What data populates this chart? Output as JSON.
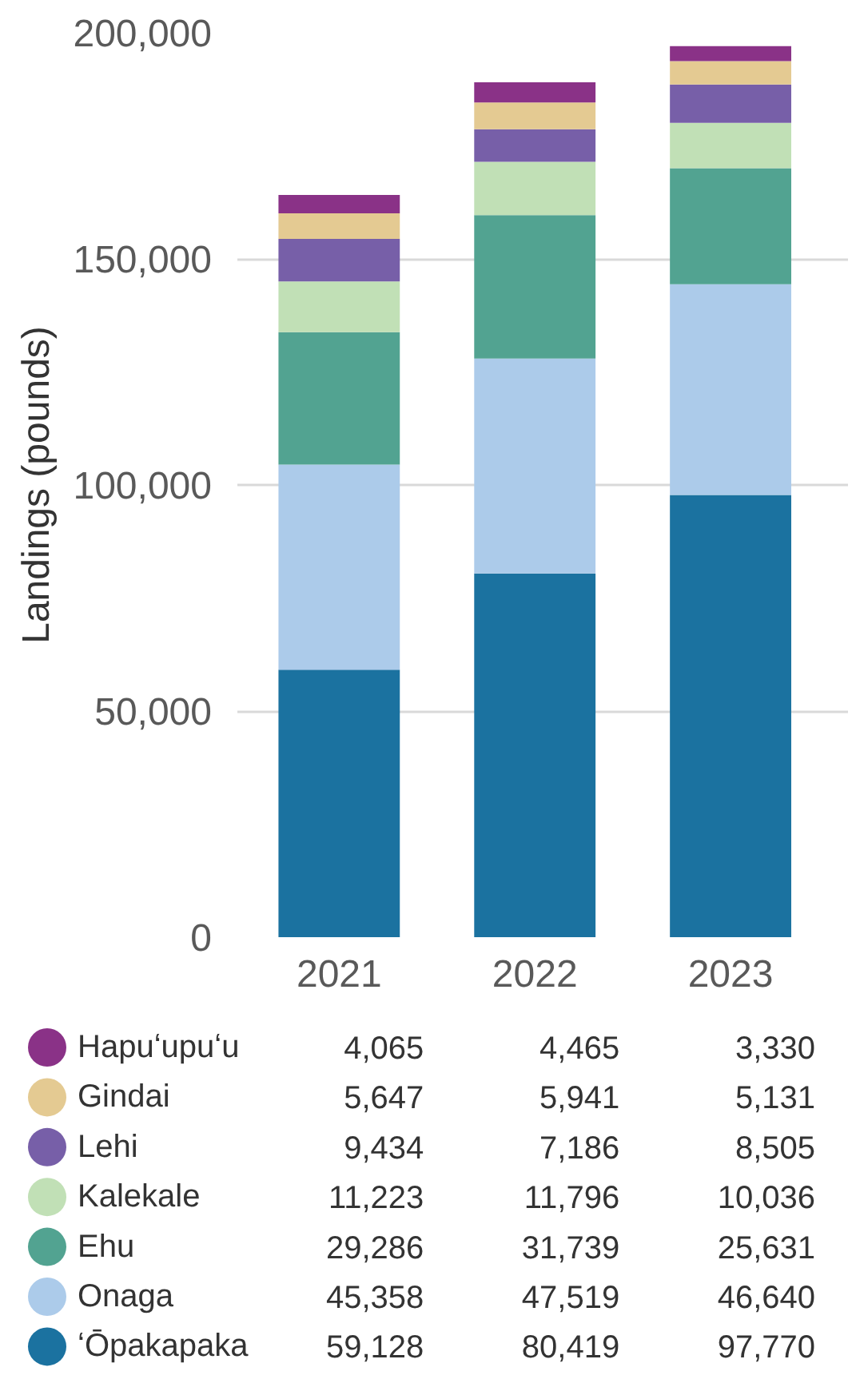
{
  "chart_data": {
    "type": "bar",
    "stacked": true,
    "ylabel": "Landings (pounds)",
    "categories": [
      "2021",
      "2022",
      "2023"
    ],
    "series": [
      {
        "name": "ʻŌpakapaka",
        "color": "#1b72a0",
        "values": [
          59128,
          80419,
          97770
        ],
        "value_labels": [
          "59,128",
          "80,419",
          "97,770"
        ]
      },
      {
        "name": "Onaga",
        "color": "#accbea",
        "values": [
          45358,
          47519,
          46640
        ],
        "value_labels": [
          "45,358",
          "47,519",
          "46,640"
        ]
      },
      {
        "name": "Ehu",
        "color": "#52a391",
        "values": [
          29286,
          31739,
          25631
        ],
        "value_labels": [
          "29,286",
          "31,739",
          "25,631"
        ]
      },
      {
        "name": "Kalekale",
        "color": "#c1e0b6",
        "values": [
          11223,
          11796,
          10036
        ],
        "value_labels": [
          "11,223",
          "11,796",
          "10,036"
        ]
      },
      {
        "name": "Lehi",
        "color": "#775fa8",
        "values": [
          9434,
          7186,
          8505
        ],
        "value_labels": [
          "9,434",
          "7,186",
          "8,505"
        ]
      },
      {
        "name": "Gindai",
        "color": "#e4ca92",
        "values": [
          5647,
          5941,
          5131
        ],
        "value_labels": [
          "5,647",
          "5,941",
          "5,131"
        ]
      },
      {
        "name": "Hapuʻupuʻu",
        "color": "#8a3287",
        "values": [
          4065,
          4465,
          3330
        ],
        "value_labels": [
          "4,065",
          "4,465",
          "3,330"
        ]
      }
    ],
    "ylim": [
      0,
      200000
    ],
    "yticks": [
      0,
      {
        "value": 50000,
        "label": "50,000"
      },
      {
        "value": 100000,
        "label": "100,000"
      },
      {
        "value": 150000,
        "label": "150,000"
      },
      {
        "value": 200000,
        "label": "200,000"
      }
    ],
    "grid": "y",
    "legend": "bottom"
  }
}
